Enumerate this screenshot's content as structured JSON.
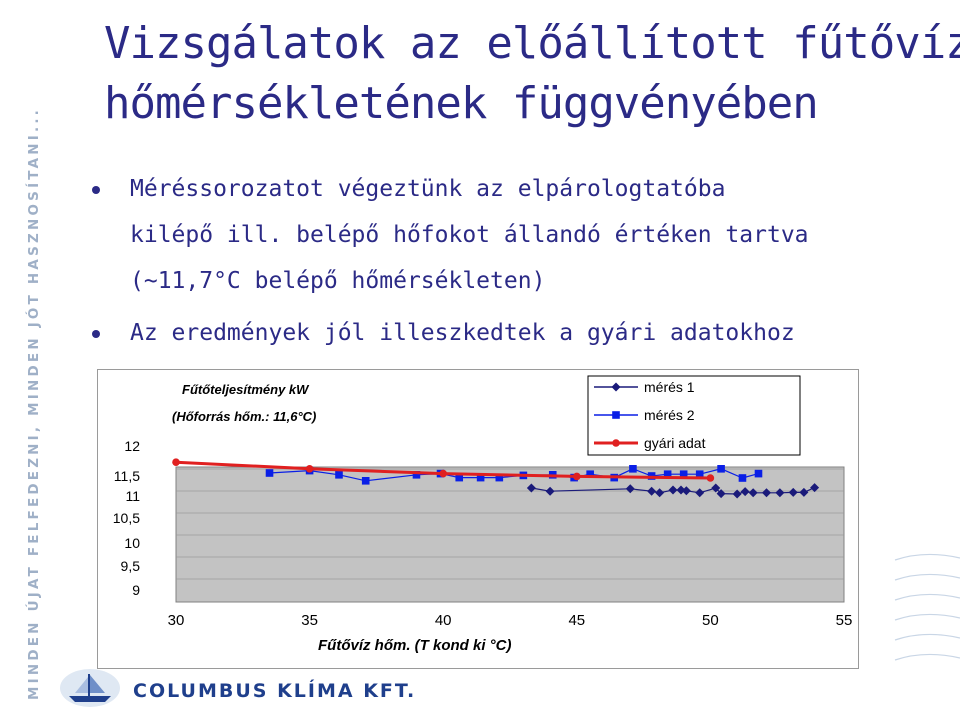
{
  "slide": {
    "side_text": "MINDEN ÚJAT FELFEDEZNI, MINDEN JÓT HASZNOSÍTANI...",
    "title_line1": "Vizsgálatok az előállított fűtővíz",
    "title_line2": "hőmérsékletének függvényében",
    "bullets": [
      {
        "lines": [
          "Méréssorozatot végeztünk az elpárologtatóba",
          "kilépő ill. belépő hőfokot állandó értéken tartva",
          "(~11,7°C belépő hőmérsékleten)"
        ]
      },
      {
        "lines": [
          "Az eredmények jól illeszkedtek a gyári adatokhoz"
        ]
      }
    ],
    "logo_text": "COLUMBUS KLÍMA KFT.",
    "accent_color": "#2b2a86"
  },
  "chart_data": {
    "type": "line",
    "title": "Fűtőteljesítmény kW",
    "subtitle": "(Hőforrás hőm.: 11,6°C)",
    "xlabel": "Fűtővíz hőm. (T kond ki  °C)",
    "ylabel": "",
    "x_ticks": [
      "30",
      "35",
      "40",
      "45",
      "50",
      "55"
    ],
    "y_ticks": [
      "12",
      "11,5",
      "11",
      "10,5",
      "10",
      "9,5",
      "9"
    ],
    "xlim": [
      30,
      55
    ],
    "ylim": [
      9,
      12
    ],
    "grid": true,
    "legend_position": "top-right",
    "series": [
      {
        "name": "mérés 1",
        "color": "#1a1a7a",
        "marker": "diamond",
        "points": [
          [
            43.3,
            11.2
          ],
          [
            44.0,
            11.12
          ],
          [
            47.0,
            11.18
          ],
          [
            47.8,
            11.12
          ],
          [
            48.1,
            11.08
          ],
          [
            48.6,
            11.15
          ],
          [
            48.9,
            11.15
          ],
          [
            49.1,
            11.13
          ],
          [
            49.6,
            11.08
          ],
          [
            50.2,
            11.2
          ],
          [
            50.4,
            11.06
          ],
          [
            51.0,
            11.05
          ],
          [
            51.3,
            11.11
          ],
          [
            51.6,
            11.08
          ],
          [
            52.1,
            11.08
          ],
          [
            52.6,
            11.08
          ],
          [
            53.1,
            11.09
          ],
          [
            53.5,
            11.09
          ],
          [
            53.9,
            11.21
          ]
        ]
      },
      {
        "name": "mérés 2",
        "color": "#0a1fe6",
        "marker": "square",
        "points": [
          [
            33.5,
            11.55
          ],
          [
            35.0,
            11.59
          ],
          [
            36.1,
            11.52
          ],
          [
            37.1,
            11.38
          ],
          [
            39.0,
            11.52
          ],
          [
            39.9,
            11.54
          ],
          [
            40.6,
            11.46
          ],
          [
            41.4,
            11.46
          ],
          [
            42.1,
            11.46
          ],
          [
            43.0,
            11.51
          ],
          [
            44.1,
            11.52
          ],
          [
            44.9,
            11.46
          ],
          [
            45.5,
            11.53
          ],
          [
            46.4,
            11.46
          ],
          [
            47.1,
            11.62
          ],
          [
            47.8,
            11.5
          ],
          [
            48.4,
            11.53
          ],
          [
            49.0,
            11.53
          ],
          [
            49.6,
            11.53
          ],
          [
            50.4,
            11.62
          ],
          [
            51.2,
            11.45
          ],
          [
            51.8,
            11.54
          ]
        ]
      },
      {
        "name": "gyári adat",
        "color": "#e02020",
        "marker": "circle",
        "points": [
          [
            30,
            11.73
          ],
          [
            35,
            11.62
          ],
          [
            40,
            11.54
          ],
          [
            45,
            11.49
          ],
          [
            50,
            11.45
          ]
        ]
      }
    ]
  }
}
